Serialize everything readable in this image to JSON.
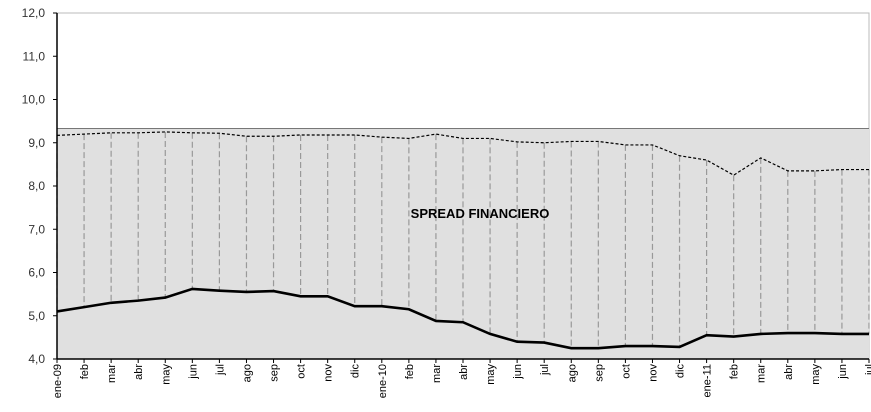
{
  "chart_data": {
    "type": "line",
    "annotation": "SPREAD FINANCIERO",
    "categories": [
      "ene-09",
      "feb",
      "mar",
      "abr",
      "may",
      "jun",
      "jul",
      "ago",
      "sep",
      "oct",
      "nov",
      "dic",
      "ene-10",
      "feb",
      "mar",
      "abr",
      "may",
      "jun",
      "jul",
      "ago",
      "sep",
      "oct",
      "nov",
      "dic",
      "ene-11",
      "feb",
      "mar",
      "abr",
      "may",
      "jun",
      "jul"
    ],
    "series": [
      {
        "type": "area",
        "color": "#e0e0e0",
        "values": [
          9.33,
          9.33,
          9.33,
          9.33,
          9.33,
          9.33,
          9.33,
          9.33,
          9.33,
          9.33,
          9.33,
          9.33,
          9.33,
          9.33,
          9.33,
          9.33,
          9.33,
          9.33,
          9.33,
          9.33,
          9.33,
          9.33,
          9.33,
          9.33,
          9.33,
          9.33,
          9.33,
          9.33,
          9.33,
          9.33,
          9.33
        ]
      },
      {
        "type": "line",
        "color": "#000000",
        "dash": true,
        "values": [
          9.17,
          9.2,
          9.23,
          9.23,
          9.25,
          9.23,
          9.22,
          9.15,
          9.15,
          9.18,
          9.18,
          9.18,
          9.13,
          9.1,
          9.2,
          9.1,
          9.1,
          9.02,
          9.0,
          9.03,
          9.03,
          8.95,
          8.95,
          8.7,
          8.6,
          8.25,
          8.65,
          8.35,
          8.35,
          8.38,
          8.38
        ]
      },
      {
        "type": "line",
        "color": "#000000",
        "dash": false,
        "values": [
          5.1,
          5.2,
          5.3,
          5.35,
          5.42,
          5.62,
          5.58,
          5.55,
          5.57,
          5.45,
          5.45,
          5.22,
          5.22,
          5.15,
          4.88,
          4.85,
          4.58,
          4.4,
          4.38,
          4.25,
          4.25,
          4.3,
          4.3,
          4.28,
          4.55,
          4.52,
          4.58,
          4.6,
          4.6,
          4.58,
          4.58
        ]
      }
    ],
    "high_low_lines": true,
    "ylim": [
      4,
      12
    ],
    "yticks": [
      {
        "value": 4,
        "label": "4,0"
      },
      {
        "value": 5,
        "label": "5,0"
      },
      {
        "value": 6,
        "label": "6,0"
      },
      {
        "value": 7,
        "label": "7,0"
      },
      {
        "value": 8,
        "label": "8,0"
      },
      {
        "value": 9,
        "label": "9,0"
      },
      {
        "value": 10,
        "label": "10,0"
      },
      {
        "value": 11,
        "label": "11,0"
      },
      {
        "value": 12,
        "label": "12,0"
      }
    ]
  }
}
